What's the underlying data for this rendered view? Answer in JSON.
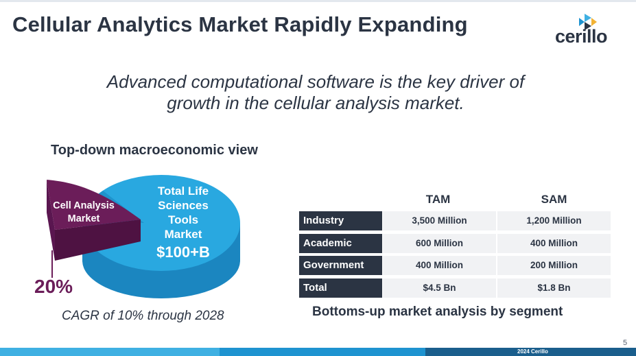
{
  "slide": {
    "title": "Cellular Analytics Market Rapidly Expanding",
    "logo_text": "cerillo",
    "subtitle_line1": "Advanced computational software is the key driver of",
    "subtitle_line2": "growth in the cellular analysis market.",
    "page_number": "5",
    "copyright": "2024 Cerillo"
  },
  "pie": {
    "heading": "Top-down macroeconomic view",
    "total_label_lines": [
      "Total Life",
      "Sciences",
      "Tools",
      "Market"
    ],
    "total_value": "$100+B",
    "cell_label_lines": [
      "Cell Analysis",
      "Market"
    ],
    "cell_percent": "20%",
    "cagr": "CAGR of 10% through 2028"
  },
  "table": {
    "headers": [
      "TAM",
      "SAM"
    ],
    "rows": [
      {
        "label": "Industry",
        "tam": "3,500 Million",
        "sam": "1,200 Million"
      },
      {
        "label": "Academic",
        "tam": "600 Million",
        "sam": "400 Million"
      },
      {
        "label": "Government",
        "tam": "400 Million",
        "sam": "200 Million"
      },
      {
        "label": "Total",
        "tam": "$4.5 Bn",
        "sam": "$1.8 Bn"
      }
    ],
    "caption": "Bottoms-up market analysis by segment"
  },
  "colors": {
    "navy": "#2b3443",
    "pie_blue": "#29a8e0",
    "pie_blue_dark": "#1b86c0",
    "cell_purple": "#6b1d59",
    "cell_purple_dark": "#4e1242"
  }
}
